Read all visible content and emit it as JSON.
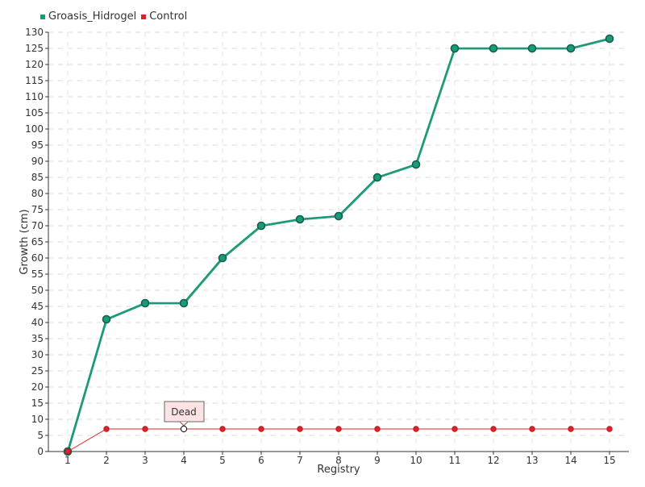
{
  "chart_data": {
    "type": "line",
    "title": "",
    "xlabel": "Registry",
    "ylabel": "Growth (cm)",
    "categories": [
      "1",
      "2",
      "3",
      "4",
      "5",
      "6",
      "7",
      "8",
      "9",
      "10",
      "11",
      "12",
      "13",
      "14",
      "15"
    ],
    "ylim": [
      0,
      130
    ],
    "yticks": [
      0,
      5,
      10,
      15,
      20,
      25,
      30,
      35,
      40,
      45,
      50,
      55,
      60,
      65,
      70,
      75,
      80,
      85,
      90,
      95,
      100,
      105,
      110,
      115,
      120,
      125,
      130
    ],
    "grid": true,
    "legend": "top-left",
    "series": [
      {
        "name": "Groasis_Hidrogel",
        "color": "#1a9a78",
        "values": [
          0,
          41,
          46,
          46,
          60,
          70,
          72,
          73,
          85,
          89,
          125,
          125,
          125,
          125,
          128
        ]
      },
      {
        "name": "Control",
        "color": "#e0202a",
        "values": [
          0,
          7,
          7,
          7,
          7,
          7,
          7,
          7,
          7,
          7,
          7,
          7,
          7,
          7,
          7
        ]
      }
    ],
    "annotations": [
      {
        "text": "Dead",
        "series": "Control",
        "x": "4",
        "y": 7
      }
    ]
  }
}
